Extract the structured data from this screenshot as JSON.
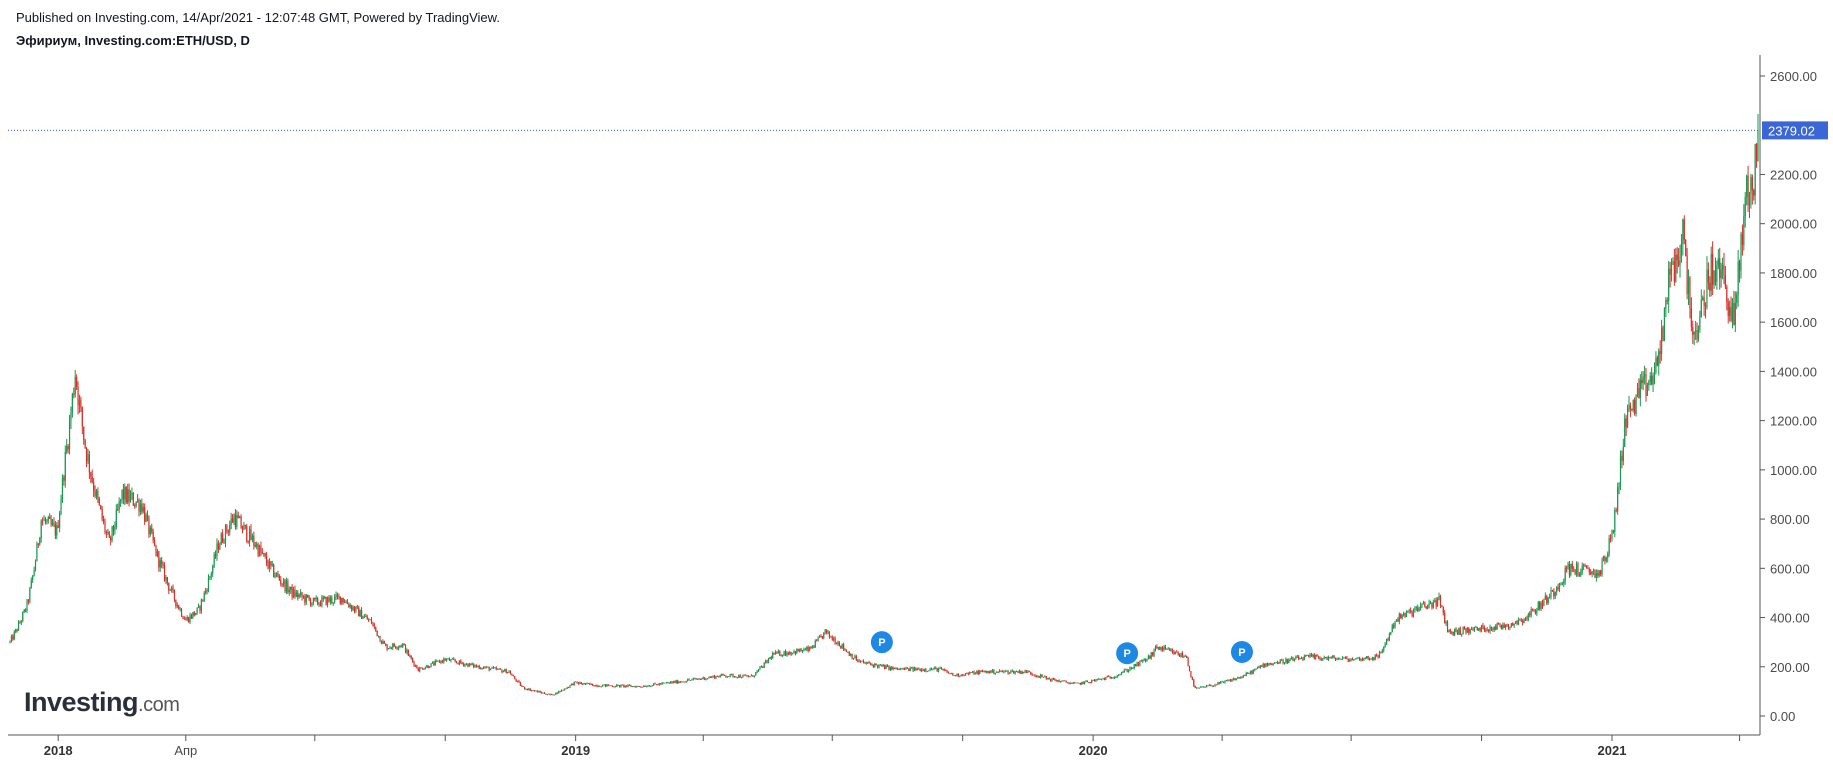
{
  "header": {
    "published": "Published on Investing.com, 14/Apr/2021 - 12:07:48 GMT, Powered by TradingView.",
    "symbol": "Эфириум, Investing.com:ETH/USD, D"
  },
  "logo": {
    "name": "Investing",
    "suffix": ".com"
  },
  "colors": {
    "up": "#1a9850",
    "down": "#d73027",
    "last_price": "#3a66d6",
    "marker": "#1e88e5",
    "axis": "#555555"
  },
  "chart_data": {
    "type": "candlestick",
    "interval": "D",
    "ylim": [
      0,
      2680
    ],
    "y_ticks": [
      0,
      200,
      400,
      600,
      800,
      1000,
      1200,
      1400,
      1600,
      1800,
      2000,
      2200,
      2600
    ],
    "y_tick_labels": [
      "0.00",
      "200.00",
      "400.00",
      "600.00",
      "800.00",
      "1000.00",
      "1200.00",
      "1400.00",
      "1600.00",
      "1800.00",
      "2000.00",
      "2200.00",
      "2600.00"
    ],
    "x_range": [
      "2017-11-28",
      "2021-04-14"
    ],
    "x_tick_labels": [
      {
        "date": "2018-01-01",
        "label": "2018",
        "year": true
      },
      {
        "date": "2018-04-01",
        "label": "Апр",
        "year": false
      },
      {
        "date": "2019-01-01",
        "label": "2019",
        "year": true
      },
      {
        "date": "2020-01-01",
        "label": "2020",
        "year": true
      },
      {
        "date": "2021-01-01",
        "label": "2021",
        "year": true
      }
    ],
    "minor_x_ticks": [
      "2018-07-01",
      "2018-10-01",
      "2019-04-01",
      "2019-07-01",
      "2019-10-01",
      "2020-04-01",
      "2020-07-01",
      "2020-10-01",
      "2021-04-01"
    ],
    "last_price": 2379.02,
    "last_price_label": "2379.02",
    "price_path": [
      [
        "2017-11-28",
        300
      ],
      [
        "2017-12-10",
        450
      ],
      [
        "2017-12-20",
        800
      ],
      [
        "2017-12-31",
        750
      ],
      [
        "2018-01-05",
        1000
      ],
      [
        "2018-01-13",
        1400
      ],
      [
        "2018-01-20",
        1100
      ],
      [
        "2018-02-06",
        700
      ],
      [
        "2018-02-15",
        900
      ],
      [
        "2018-03-01",
        860
      ],
      [
        "2018-03-15",
        600
      ],
      [
        "2018-04-01",
        390
      ],
      [
        "2018-04-10",
        430
      ],
      [
        "2018-04-24",
        700
      ],
      [
        "2018-05-05",
        810
      ],
      [
        "2018-05-20",
        700
      ],
      [
        "2018-06-01",
        590
      ],
      [
        "2018-06-15",
        500
      ],
      [
        "2018-07-01",
        460
      ],
      [
        "2018-07-20",
        480
      ],
      [
        "2018-08-10",
        380
      ],
      [
        "2018-08-20",
        280
      ],
      [
        "2018-09-01",
        290
      ],
      [
        "2018-09-12",
        190
      ],
      [
        "2018-10-01",
        230
      ],
      [
        "2018-10-20",
        205
      ],
      [
        "2018-11-15",
        180
      ],
      [
        "2018-11-25",
        115
      ],
      [
        "2018-12-15",
        85
      ],
      [
        "2018-12-31",
        135
      ],
      [
        "2019-01-15",
        125
      ],
      [
        "2019-02-15",
        120
      ],
      [
        "2019-03-15",
        140
      ],
      [
        "2019-04-15",
        165
      ],
      [
        "2019-05-05",
        160
      ],
      [
        "2019-05-20",
        250
      ],
      [
        "2019-06-15",
        270
      ],
      [
        "2019-06-26",
        340
      ],
      [
        "2019-07-05",
        300
      ],
      [
        "2019-07-20",
        220
      ],
      [
        "2019-08-15",
        190
      ],
      [
        "2019-09-15",
        190
      ],
      [
        "2019-09-25",
        165
      ],
      [
        "2019-10-15",
        180
      ],
      [
        "2019-11-15",
        180
      ],
      [
        "2019-12-01",
        150
      ],
      [
        "2019-12-20",
        130
      ],
      [
        "2020-01-15",
        160
      ],
      [
        "2020-02-10",
        240
      ],
      [
        "2020-02-15",
        280
      ],
      [
        "2020-03-07",
        240
      ],
      [
        "2020-03-13",
        110
      ],
      [
        "2020-04-01",
        135
      ],
      [
        "2020-04-15",
        160
      ],
      [
        "2020-05-01",
        210
      ],
      [
        "2020-06-01",
        240
      ],
      [
        "2020-07-01",
        230
      ],
      [
        "2020-07-20",
        240
      ],
      [
        "2020-08-01",
        390
      ],
      [
        "2020-08-15",
        430
      ],
      [
        "2020-09-01",
        470
      ],
      [
        "2020-09-08",
        340
      ],
      [
        "2020-10-01",
        355
      ],
      [
        "2020-10-20",
        370
      ],
      [
        "2020-11-01",
        400
      ],
      [
        "2020-11-20",
        500
      ],
      [
        "2020-12-01",
        600
      ],
      [
        "2020-12-23",
        580
      ],
      [
        "2021-01-01",
        730
      ],
      [
        "2021-01-10",
        1200
      ],
      [
        "2021-01-20",
        1300
      ],
      [
        "2021-02-01",
        1400
      ],
      [
        "2021-02-10",
        1750
      ],
      [
        "2021-02-20",
        1950
      ],
      [
        "2021-03-01",
        1500
      ],
      [
        "2021-03-10",
        1800
      ],
      [
        "2021-03-20",
        1800
      ],
      [
        "2021-03-28",
        1600
      ],
      [
        "2021-04-05",
        2100
      ],
      [
        "2021-04-10",
        2150
      ],
      [
        "2021-04-14",
        2379
      ]
    ],
    "markers": [
      {
        "date": "2019-08-05",
        "price": 300,
        "label": "P"
      },
      {
        "date": "2020-01-25",
        "price": 255,
        "label": "P"
      },
      {
        "date": "2020-04-15",
        "price": 260,
        "label": "P"
      }
    ]
  }
}
